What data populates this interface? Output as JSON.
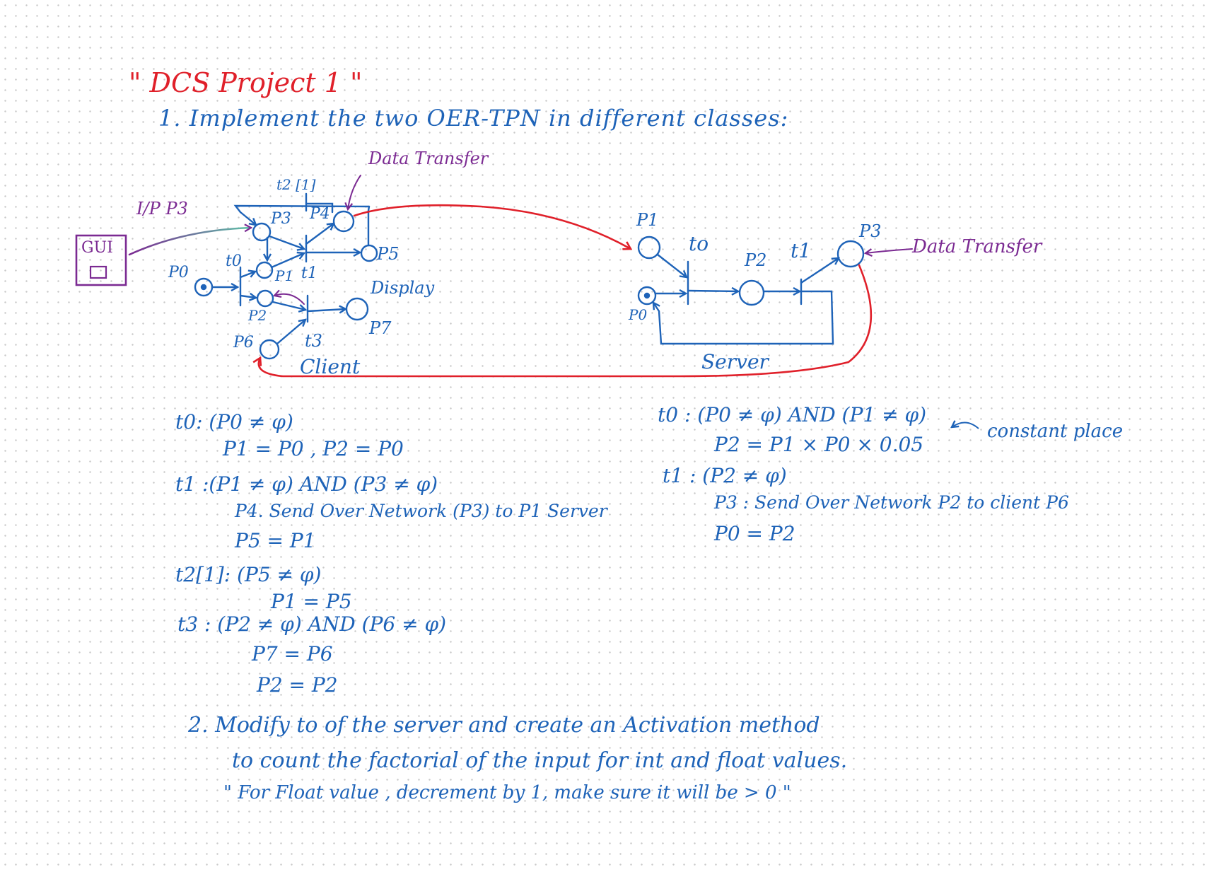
{
  "title": "\" DCS Project 1 \"",
  "task1": "1. Implement the two OER-TPN in different classes:",
  "client": {
    "data_transfer": "Data Transfer",
    "ip_label": "I/P P3",
    "gui": "GUI",
    "p0": "P0",
    "p1": "P1",
    "p2": "P2",
    "p3": "P3",
    "p4": "P4",
    "p5": "P5",
    "p6": "P6",
    "p7": "P7",
    "t0": "t0",
    "t1": "t1",
    "t2": "t2 [1]",
    "t3": "t3",
    "display": "Display",
    "caption": "Client"
  },
  "server": {
    "p0": "P0",
    "p1": "P1",
    "p2": "P2",
    "p3": "P3",
    "t0": "to",
    "t1": "t1",
    "data_transfer": "Data Transfer",
    "caption": "Server"
  },
  "client_rules": [
    "t0: (P0 ≠ φ)",
    "P1 = P0 , P2 = P0",
    "t1 :(P1 ≠ φ) AND (P3 ≠ φ)",
    "P4. Send Over Network (P3) to P1 Server",
    "P5 = P1",
    "t2[1]: (P5 ≠ φ)",
    "P1 = P5",
    "t3 : (P2 ≠ φ) AND (P6 ≠ φ)",
    "P7 = P6",
    "P2 = P2"
  ],
  "server_rules": [
    "t0 : (P0 ≠ φ) AND (P1 ≠ φ)",
    "P2 = P1 × P0 × 0.05",
    "t1 : (P2 ≠ φ)",
    "P3 : Send Over Network P2 to client P6",
    "P0 = P2"
  ],
  "constant_note": "constant place",
  "task2": [
    "2. Modify to of the server and create an Activation method",
    "to count the factorial of the input for int and float values.",
    "\" For Float value , decrement by 1, make sure it will be > 0 \""
  ]
}
